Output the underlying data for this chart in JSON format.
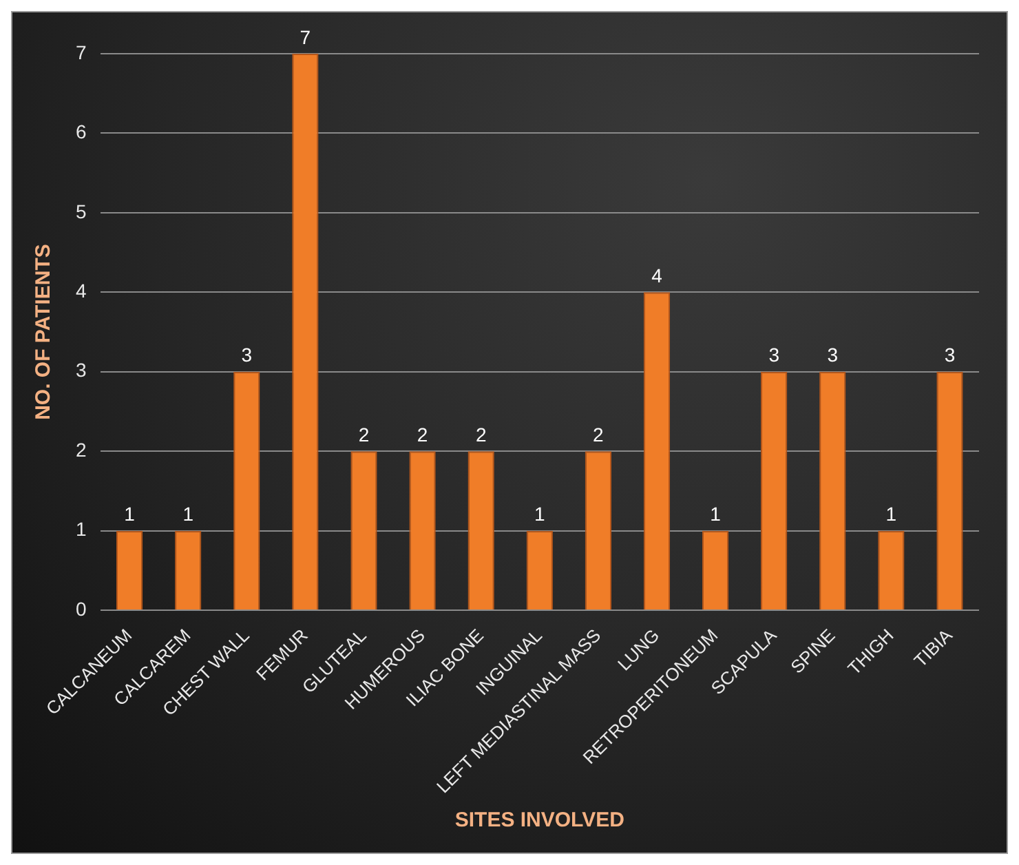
{
  "chart_data": {
    "type": "bar",
    "categories": [
      "CALCANEUM",
      "CALCAREM",
      "CHEST WALL",
      "FEMUR",
      "GLUTEAL",
      "HUMEROUS",
      "ILIAC BONE",
      "INGUINAL",
      "LEFT MEDIASTINAL MASS",
      "LUNG",
      "RETROPERITONEUM",
      "SCAPULA",
      "SPINE",
      "THIGH",
      "TIBIA"
    ],
    "values": [
      1,
      1,
      3,
      7,
      2,
      2,
      2,
      1,
      2,
      4,
      1,
      3,
      3,
      1,
      3
    ],
    "color": "#f07d28",
    "xlabel": "SITES INVOLVED",
    "ylabel": "NO. OF PATIENTS",
    "ylim": [
      0,
      7
    ],
    "yticks": [
      0,
      1,
      2,
      3,
      4,
      5,
      6,
      7
    ],
    "grid": "y",
    "data_labels": true
  }
}
